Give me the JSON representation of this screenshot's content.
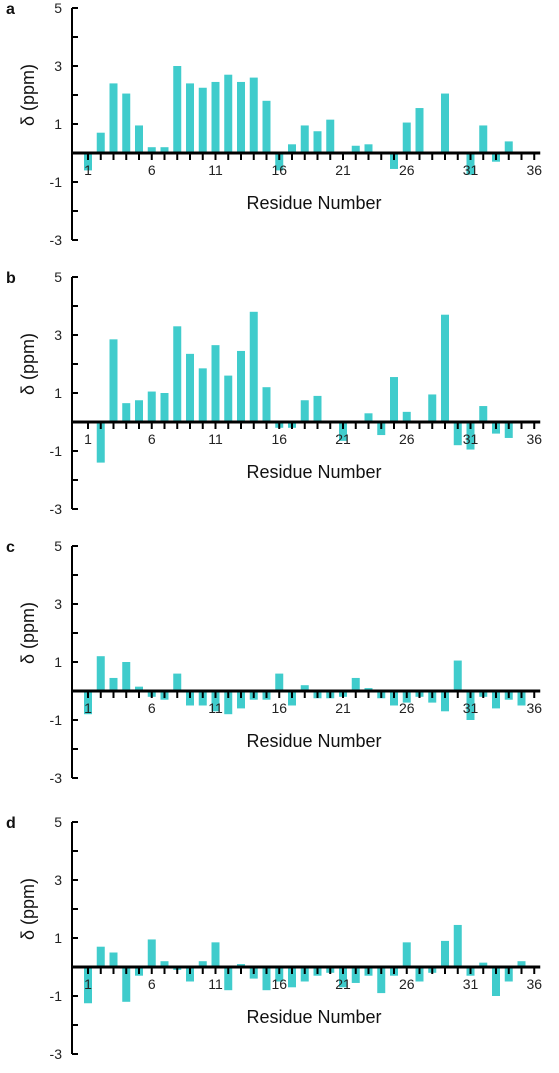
{
  "figure": {
    "bar_color": "#40CCCC",
    "axis_color": "#000000"
  },
  "chart_data": [
    {
      "type": "bar",
      "panel": "a",
      "xlabel": "Residue Number",
      "ylabel": "δ (ppm)",
      "ylim": [
        -3,
        5
      ],
      "yticks": [
        5,
        3,
        1,
        -1,
        -3
      ],
      "xticks": [
        1,
        6,
        11,
        16,
        21,
        26,
        31,
        36
      ],
      "categories": [
        1,
        2,
        3,
        4,
        5,
        6,
        7,
        8,
        9,
        10,
        11,
        12,
        13,
        14,
        15,
        16,
        17,
        18,
        19,
        20,
        21,
        22,
        23,
        24,
        25,
        26,
        27,
        28,
        29,
        30,
        31,
        32,
        33,
        34,
        35,
        36
      ],
      "values": [
        -0.6,
        0.7,
        2.4,
        2.05,
        0.95,
        0.2,
        0.2,
        3.0,
        2.4,
        2.25,
        2.45,
        2.7,
        2.45,
        2.6,
        1.8,
        -0.6,
        0.3,
        0.95,
        0.75,
        1.15,
        0,
        0.25,
        0.3,
        0,
        -0.55,
        1.05,
        1.55,
        0,
        2.05,
        0,
        -0.75,
        0.95,
        -0.3,
        0.4,
        0,
        0
      ]
    },
    {
      "type": "bar",
      "panel": "b",
      "xlabel": "Residue Number",
      "ylabel": "δ (ppm)",
      "ylim": [
        -3,
        5
      ],
      "yticks": [
        5,
        3,
        1,
        -1,
        -3
      ],
      "xticks": [
        1,
        6,
        11,
        16,
        21,
        26,
        31,
        36
      ],
      "categories": [
        1,
        2,
        3,
        4,
        5,
        6,
        7,
        8,
        9,
        10,
        11,
        12,
        13,
        14,
        15,
        16,
        17,
        18,
        19,
        20,
        21,
        22,
        23,
        24,
        25,
        26,
        27,
        28,
        29,
        30,
        31,
        32,
        33,
        34,
        35,
        36
      ],
      "values": [
        0.05,
        -1.4,
        2.85,
        0.65,
        0.75,
        1.05,
        1.0,
        3.3,
        2.35,
        1.85,
        2.65,
        1.6,
        2.45,
        3.8,
        1.2,
        -0.2,
        -0.2,
        0.75,
        0.9,
        0,
        -0.65,
        0,
        0.3,
        -0.45,
        1.55,
        0.35,
        0,
        0.95,
        3.7,
        -0.8,
        -0.95,
        0.55,
        -0.4,
        -0.55,
        0,
        0
      ]
    },
    {
      "type": "bar",
      "panel": "c",
      "xlabel": "Residue Number",
      "ylabel": "δ (ppm)",
      "ylim": [
        -3,
        5
      ],
      "yticks": [
        5,
        3,
        1,
        -1,
        -3
      ],
      "xticks": [
        1,
        6,
        11,
        16,
        21,
        26,
        31,
        36
      ],
      "categories": [
        1,
        2,
        3,
        4,
        5,
        6,
        7,
        8,
        9,
        10,
        11,
        12,
        13,
        14,
        15,
        16,
        17,
        18,
        19,
        20,
        21,
        22,
        23,
        24,
        25,
        26,
        27,
        28,
        29,
        30,
        31,
        32,
        33,
        34,
        35,
        36
      ],
      "values": [
        -0.8,
        1.2,
        0.45,
        1.0,
        0.15,
        -0.2,
        -0.3,
        0.6,
        -0.5,
        -0.5,
        -0.7,
        -0.8,
        -0.6,
        -0.3,
        -0.3,
        0.6,
        -0.5,
        0.2,
        -0.25,
        -0.25,
        -0.2,
        0.45,
        0.1,
        -0.25,
        -0.5,
        -0.4,
        -0.2,
        -0.4,
        -0.7,
        1.05,
        -1.0,
        -0.2,
        -0.6,
        -0.3,
        -0.5,
        0
      ]
    },
    {
      "type": "bar",
      "panel": "d",
      "xlabel": "Residue Number",
      "ylabel": "δ (ppm)",
      "ylim": [
        -3,
        5
      ],
      "yticks": [
        5,
        3,
        1,
        -1,
        -3
      ],
      "xticks": [
        1,
        6,
        11,
        16,
        21,
        26,
        31,
        36
      ],
      "categories": [
        1,
        2,
        3,
        4,
        5,
        6,
        7,
        8,
        9,
        10,
        11,
        12,
        13,
        14,
        15,
        16,
        17,
        18,
        19,
        20,
        21,
        22,
        23,
        24,
        25,
        26,
        27,
        28,
        29,
        30,
        31,
        32,
        33,
        34,
        35,
        36
      ],
      "values": [
        -1.25,
        0.7,
        0.5,
        -1.2,
        -0.3,
        0.95,
        0.2,
        -0.1,
        -0.5,
        0.2,
        0.85,
        -0.8,
        0.1,
        -0.4,
        -0.8,
        -0.5,
        -0.7,
        -0.5,
        -0.3,
        -0.2,
        -0.7,
        -0.55,
        -0.3,
        -0.9,
        -0.3,
        0.85,
        -0.5,
        -0.2,
        0.9,
        1.45,
        -0.3,
        0.15,
        -1.0,
        -0.5,
        0.2,
        0
      ]
    }
  ]
}
